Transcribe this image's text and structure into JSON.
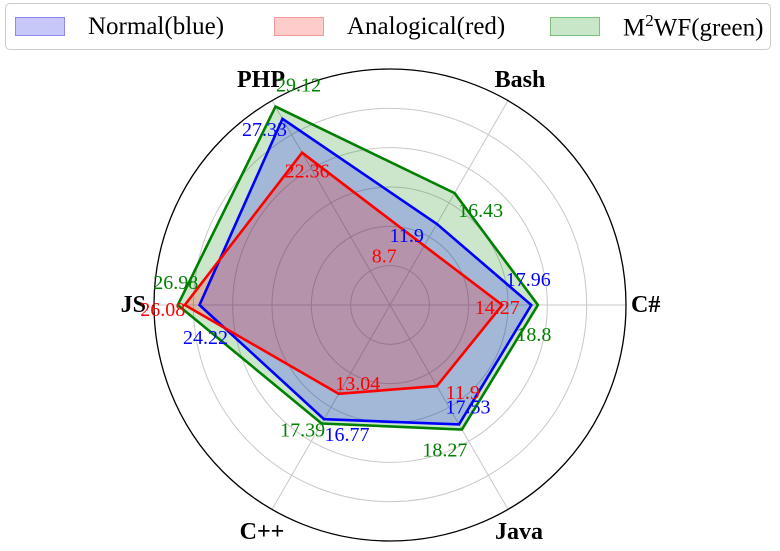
{
  "chart_data": {
    "type": "radar",
    "categories": [
      "PHP",
      "Bash",
      "C#",
      "Java",
      "C++",
      "JS"
    ],
    "series": [
      {
        "name": "M²WF(green)",
        "values": [
          29.12,
          16.43,
          18.8,
          18.27,
          17.39,
          26.98
        ],
        "labels": [
          "29.12",
          "16.43",
          "18.8",
          "18.27",
          "17.39",
          "26.98"
        ],
        "line_color": "#008000",
        "fill_color": "#008000"
      },
      {
        "name": "Normal(blue)",
        "values": [
          27.33,
          11.9,
          17.96,
          17.53,
          16.77,
          24.22
        ],
        "labels": [
          "27.33",
          "11.9",
          "17.96",
          "17.53",
          "16.77",
          "24.22"
        ],
        "line_color": "#0000ff",
        "fill_color": "#0000ff"
      },
      {
        "name": "Analogical(red)",
        "values": [
          22.36,
          8.7,
          14.27,
          11.9,
          13.04,
          26.08
        ],
        "labels": [
          "22.36",
          "8.7",
          "14.27",
          "11.9",
          "13.04",
          "26.08"
        ],
        "line_color": "#ff0000",
        "fill_color": "#ff0000"
      }
    ],
    "rlim": [
      0,
      30
    ],
    "radial_gridlines": [
      5,
      10,
      15,
      20,
      25
    ],
    "grid": true,
    "legend_position": "top"
  },
  "legend": {
    "normal": {
      "text": "Normal(blue)",
      "fill": "#c8c8f8",
      "border": "#8a8af0"
    },
    "analogical": {
      "text": "Analogical(red)",
      "fill": "#ffcccc",
      "border": "#f59a9a"
    },
    "m2wf": {
      "base": "M",
      "sup": "2",
      "rest": "WF(green)",
      "fill": "#c8e6c8",
      "border": "#80c080"
    }
  }
}
